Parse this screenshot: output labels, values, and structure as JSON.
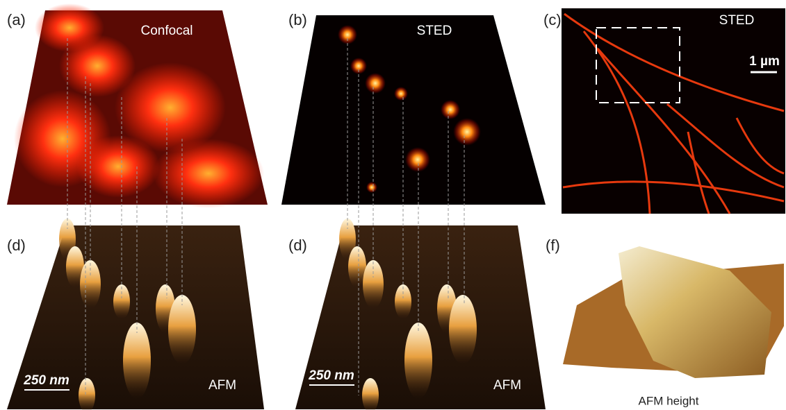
{
  "panels": [
    {
      "label": "(a)",
      "title": "Confocal"
    },
    {
      "label": "(b)",
      "title": "STED"
    },
    {
      "label": "(c)",
      "title": "STED",
      "scale_bar": "1 µm"
    },
    {
      "label": "(d)",
      "scale_bar": "250 nm",
      "title": "AFM"
    },
    {
      "label": "(d)",
      "scale_bar": "250 nm",
      "title": "AFM"
    },
    {
      "label": "(f)",
      "title": "AFM height"
    }
  ]
}
